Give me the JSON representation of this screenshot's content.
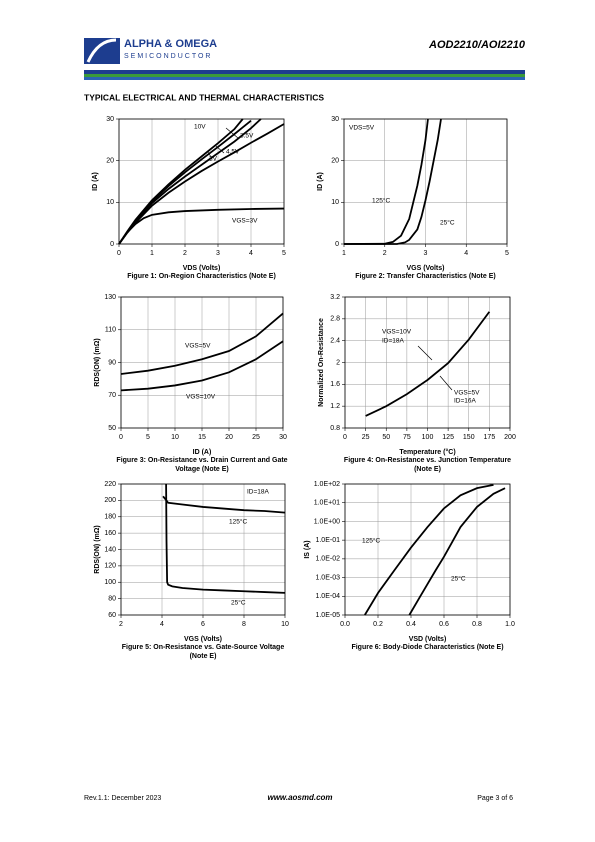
{
  "header": {
    "company": "ALPHA & OMEGA",
    "division": "SEMICONDUCTOR",
    "part": "AOD2210/AOI2210"
  },
  "section_title": "TYPICAL ELECTRICAL AND THERMAL CHARACTERISTICS",
  "footer": {
    "revision": "Rev.1.1: December 2023",
    "website": "www.aosmd.com",
    "page": "Page 3 of 6"
  },
  "chart_data": [
    {
      "type": "line",
      "xlabel": "VDS (Volts)",
      "ylabel": "ID (A)",
      "caption": [
        "Figure 1: On-Region Characteristics (Note E)"
      ],
      "xlim": [
        0,
        5
      ],
      "xticks": [
        0,
        1,
        2,
        3,
        4,
        5
      ],
      "ylim": [
        0,
        30
      ],
      "yticks": [
        0,
        10,
        20,
        30
      ],
      "grid": true,
      "annotations": [
        "10V",
        "3.5V",
        "4.5V",
        "3V",
        "VGS=3V"
      ],
      "series": [
        {
          "color": "#000000",
          "x": [
            0,
            0.25,
            0.5,
            1,
            1.5,
            2,
            2.5,
            3,
            3.5,
            3.75
          ],
          "values": [
            0,
            3,
            5.8,
            10.5,
            14.3,
            17.8,
            21,
            24.2,
            27.6,
            30
          ]
        },
        {
          "color": "#000000",
          "x": [
            0,
            0.25,
            0.5,
            1,
            1.5,
            2,
            2.5,
            3,
            3.5,
            4
          ],
          "values": [
            0,
            2.9,
            5.6,
            10.2,
            13.9,
            17.2,
            20.3,
            23.3,
            26.4,
            29.6
          ]
        },
        {
          "color": "#000000",
          "x": [
            0,
            0.25,
            0.5,
            1,
            1.5,
            2,
            2.5,
            3,
            3.5,
            4,
            4.3
          ],
          "values": [
            0,
            2.8,
            5.4,
            9.8,
            13.2,
            16.2,
            19,
            21.8,
            24.6,
            27.8,
            30
          ]
        },
        {
          "color": "#000000",
          "x": [
            0,
            0.25,
            0.5,
            1,
            1.5,
            2,
            2.5,
            3,
            3.5,
            4,
            4.5,
            5
          ],
          "values": [
            0,
            2.7,
            5.1,
            9.2,
            12.3,
            15,
            17.5,
            19.8,
            22,
            24.3,
            26.5,
            28.8
          ]
        },
        {
          "color": "#000000",
          "x": [
            0,
            0.25,
            0.5,
            0.75,
            1,
            1.5,
            2,
            3,
            4,
            5
          ],
          "values": [
            0,
            2.8,
            4.8,
            6.2,
            7,
            7.6,
            7.9,
            8.2,
            8.4,
            8.5
          ]
        }
      ]
    },
    {
      "type": "line",
      "xlabel": "VGS (Volts)",
      "ylabel": "ID (A)",
      "caption": [
        "Figure 2: Transfer Characteristics (Note E)"
      ],
      "xlim": [
        1,
        5
      ],
      "xticks": [
        1,
        2,
        3,
        4,
        5
      ],
      "ylim": [
        0,
        30
      ],
      "yticks": [
        0,
        10,
        20,
        30
      ],
      "grid": true,
      "annotations": [
        "VDS=5V",
        "125°C",
        "25°C"
      ],
      "series": [
        {
          "color": "#000000",
          "x": [
            1,
            2,
            2.2,
            2.4,
            2.6,
            2.7,
            2.8,
            2.9,
            3,
            3.06
          ],
          "values": [
            0,
            0.05,
            0.5,
            2,
            6,
            10,
            14,
            19,
            25,
            30
          ]
        },
        {
          "color": "#000000",
          "x": [
            1,
            2.3,
            2.5,
            2.6,
            2.8,
            2.9,
            3,
            3.1,
            3.2,
            3.3,
            3.38
          ],
          "values": [
            0,
            0,
            0.4,
            1,
            3.5,
            6.5,
            10.5,
            15,
            20,
            25,
            30
          ]
        }
      ]
    },
    {
      "type": "line",
      "xlabel": "ID (A)",
      "ylabel": "RDS(ON) (mΩ)",
      "caption": [
        "Figure 3: On-Resistance vs. Drain Current and Gate",
        "Voltage (Note E)"
      ],
      "xlim": [
        0,
        30
      ],
      "xticks": [
        0,
        5,
        10,
        15,
        20,
        25,
        30
      ],
      "ylim": [
        50,
        130
      ],
      "yticks": [
        50,
        70,
        90,
        110,
        130
      ],
      "grid": true,
      "annotations": [
        "VGS=5V",
        "VGS=10V"
      ],
      "series": [
        {
          "color": "#000000",
          "x": [
            0,
            5,
            10,
            15,
            20,
            25,
            30
          ],
          "values": [
            83,
            85,
            88,
            92,
            97,
            106,
            120
          ]
        },
        {
          "color": "#000000",
          "x": [
            0,
            5,
            10,
            15,
            20,
            25,
            30
          ],
          "values": [
            73,
            74,
            76,
            79,
            84,
            92,
            103
          ]
        }
      ]
    },
    {
      "type": "line",
      "xlabel": "Temperature (°C)",
      "ylabel": "Normalized On-Resistance",
      "caption": [
        "Figure 4: On-Resistance vs. Junction Temperature",
        "(Note E)"
      ],
      "xlim": [
        0,
        200
      ],
      "xticks": [
        0,
        25,
        50,
        75,
        100,
        125,
        150,
        175,
        200
      ],
      "ylim": [
        0.8,
        3.2
      ],
      "yticks": [
        0.8,
        1.2,
        1.6,
        2,
        2.4,
        2.8,
        3.2
      ],
      "grid": true,
      "annotations": [
        "VGS=10V",
        "ID=18A",
        "VGS=5V",
        "ID=16A"
      ],
      "series": [
        {
          "color": "#000000",
          "x": [
            25,
            50,
            75,
            100,
            125,
            150,
            175
          ],
          "values": [
            1.02,
            1.2,
            1.42,
            1.68,
            1.99,
            2.42,
            2.93
          ]
        }
      ]
    },
    {
      "type": "line",
      "xlabel": "VGS (Volts)",
      "ylabel": "RDS(ON) (mΩ)",
      "caption": [
        "Figure 5: On-Resistance vs. Gate-Source Voltage",
        "(Note E)"
      ],
      "xlim": [
        2,
        10
      ],
      "xticks": [
        2,
        4,
        6,
        8,
        10
      ],
      "ylim": [
        60,
        220
      ],
      "yticks": [
        60,
        80,
        100,
        120,
        140,
        160,
        180,
        200,
        220
      ],
      "grid": true,
      "annotations": [
        "ID=18A",
        "125°C",
        "25°C"
      ],
      "series": [
        {
          "color": "#000000",
          "x": [
            4.05,
            4.15,
            4.3,
            5,
            6,
            7,
            8,
            9,
            10
          ],
          "values": [
            205,
            202,
            197,
            195,
            192,
            190,
            188,
            187,
            185
          ]
        },
        {
          "color": "#000000",
          "x": [
            4.2,
            4.22,
            4.25,
            4.3,
            4.5,
            5,
            6,
            7,
            8,
            9,
            10
          ],
          "values": [
            220,
            150,
            100,
            97,
            95,
            93,
            91,
            90,
            89,
            88,
            87
          ]
        }
      ]
    },
    {
      "type": "line",
      "log_y": true,
      "xlabel": "VSD (Volts)",
      "ylabel": "IS (A)",
      "caption": [
        "Figure 6: Body-Diode Characteristics (Note E)"
      ],
      "xlim": [
        0,
        1
      ],
      "xticks": [
        {
          "value": 0,
          "label": "0.0"
        },
        0.2,
        0.4,
        0.6,
        0.8,
        {
          "value": 1,
          "label": "1.0"
        }
      ],
      "ylim": [
        1e-05,
        100
      ],
      "yticks": [
        {
          "value": 1e-05,
          "label": "1.0E-05"
        },
        {
          "value": 0.0001,
          "label": "1.0E-04"
        },
        {
          "value": 0.001,
          "label": "1.0E-03"
        },
        {
          "value": 0.01,
          "label": "1.0E-02"
        },
        {
          "value": 0.1,
          "label": "1.0E-01"
        },
        {
          "value": 1,
          "label": "1.0E+00"
        },
        {
          "value": 10,
          "label": "1.0E+01"
        },
        {
          "value": 100,
          "label": "1.0E+02"
        }
      ],
      "grid": true,
      "annotations": [
        "125°C",
        "25°C"
      ],
      "series": [
        {
          "color": "#000000",
          "x": [
            0.12,
            0.2,
            0.3,
            0.4,
            0.5,
            0.6,
            0.7,
            0.8,
            0.9
          ],
          "values": [
            1e-05,
            0.00015,
            0.0025,
            0.04,
            0.5,
            5,
            25,
            60,
            90
          ]
        },
        {
          "color": "#000000",
          "x": [
            0.39,
            0.45,
            0.5,
            0.55,
            0.6,
            0.65,
            0.7,
            0.8,
            0.9,
            0.97
          ],
          "values": [
            1e-05,
            8e-05,
            0.00045,
            0.0025,
            0.013,
            0.08,
            0.5,
            6,
            30,
            60
          ]
        }
      ]
    }
  ]
}
